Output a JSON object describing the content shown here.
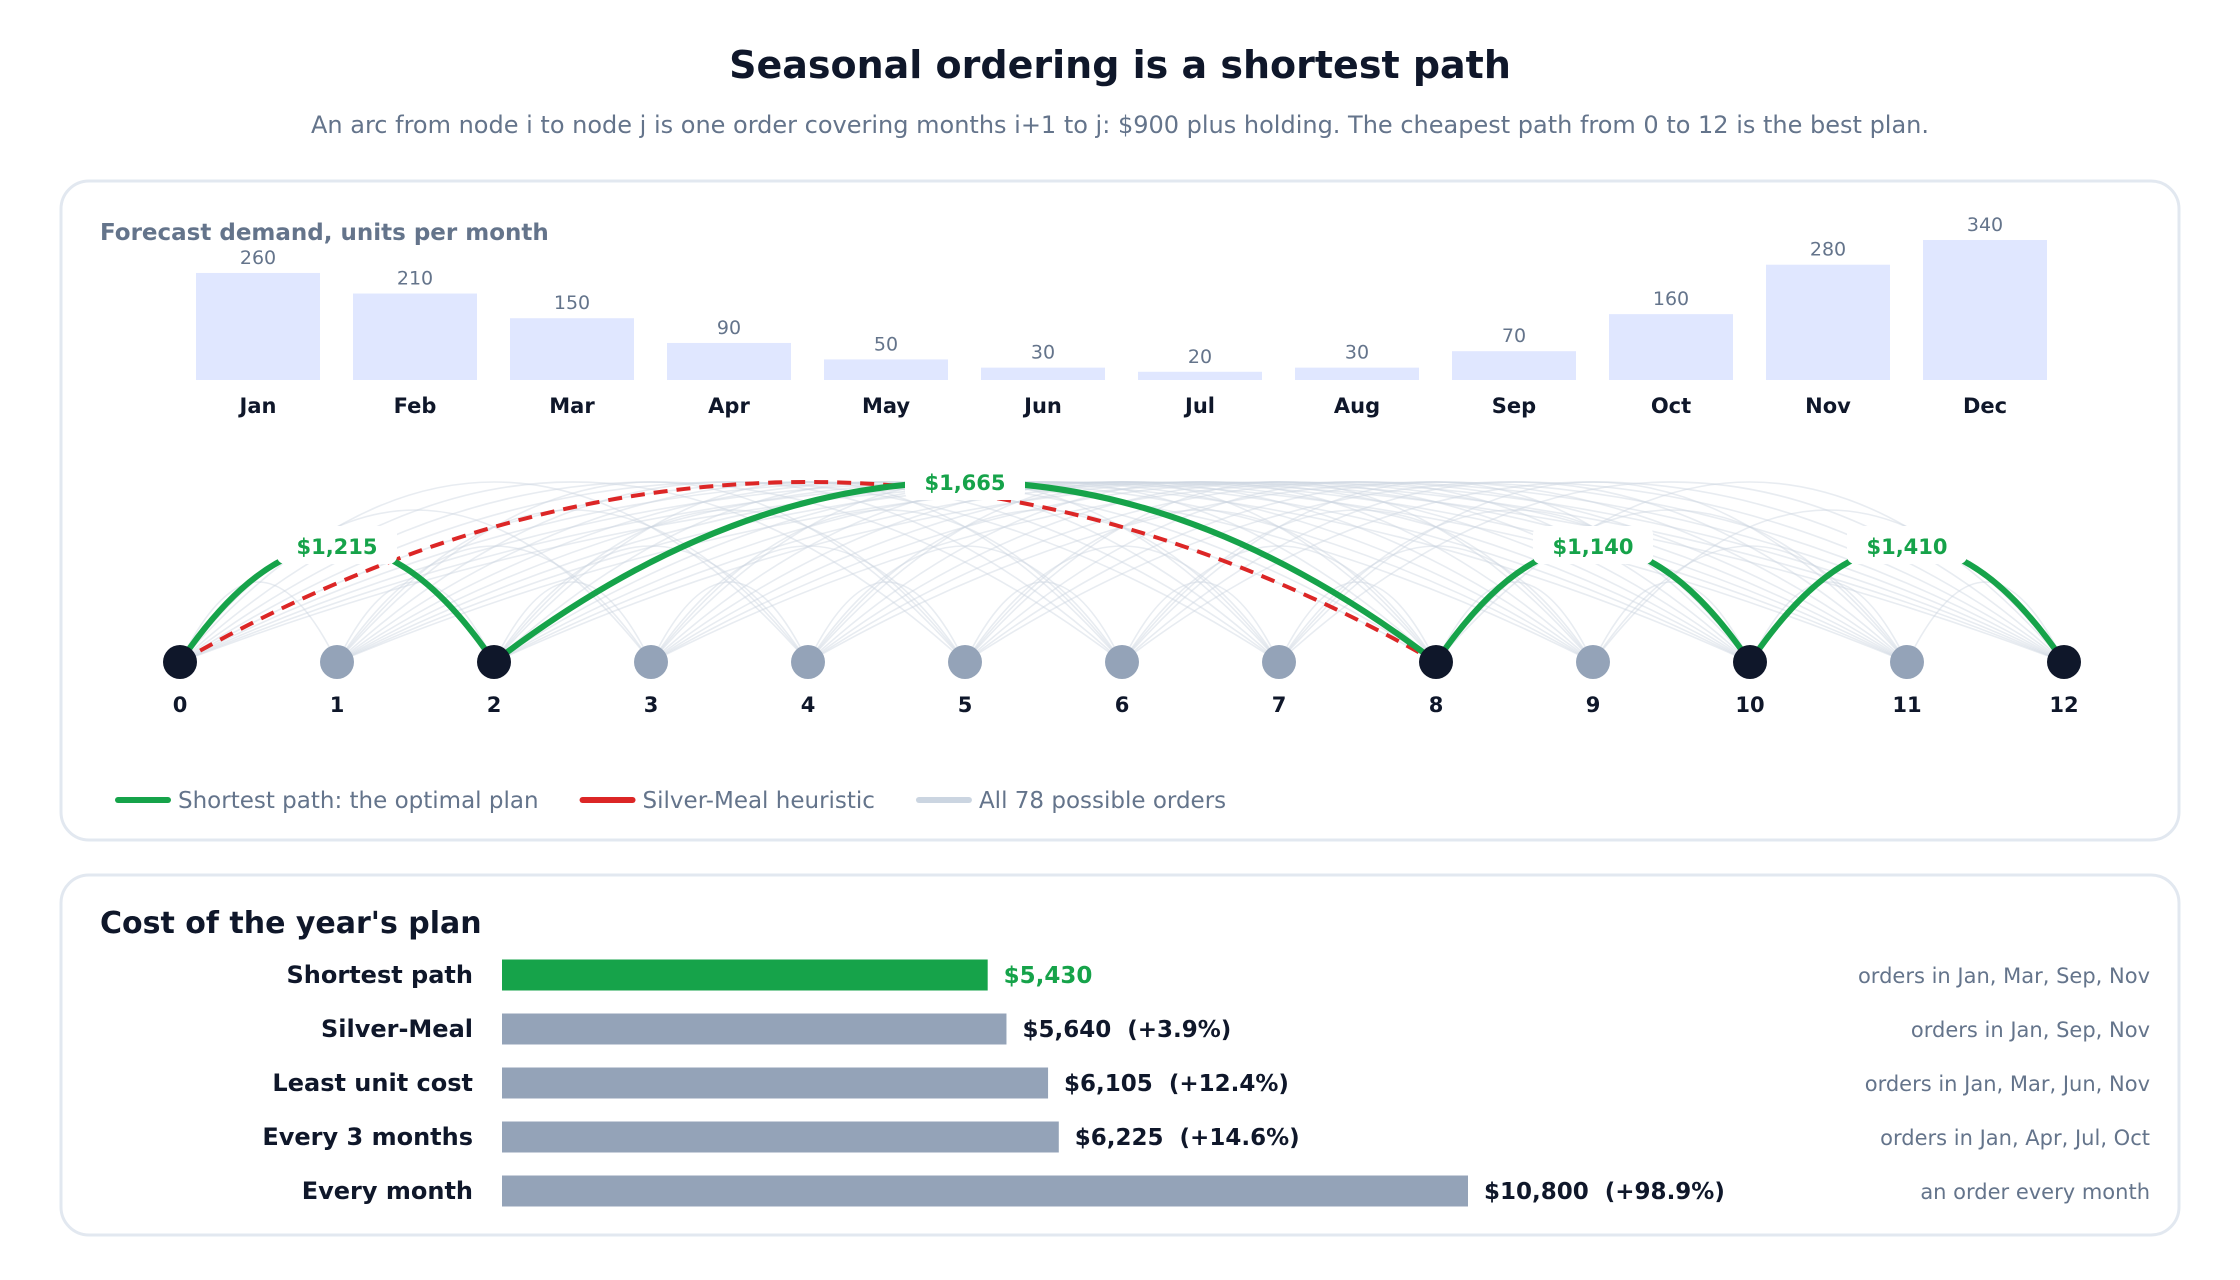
{
  "header": {
    "title": "Seasonal ordering is a shortest path",
    "subtitle": "An arc from node i to node j is one order covering months i+1 to j: $900 plus holding. The cheapest path from 0 to 12 is the best plan."
  },
  "colors": {
    "optimal": "#16a34a",
    "heuristic": "#dc2626",
    "arc": "#cbd5e1",
    "demand_bar": "#e0e7ff",
    "node_path": "#0f172a",
    "node_other": "#94a3b8",
    "cost_bar_other": "#94a3b8",
    "panel_border": "#e2e8f0",
    "muted_text": "#64748b"
  },
  "chart_data": [
    {
      "type": "bar",
      "title": "Forecast demand, units per month",
      "categories": [
        "Jan",
        "Feb",
        "Mar",
        "Apr",
        "May",
        "Jun",
        "Jul",
        "Aug",
        "Sep",
        "Oct",
        "Nov",
        "Dec"
      ],
      "values": [
        260,
        210,
        150,
        90,
        50,
        30,
        20,
        30,
        70,
        160,
        280,
        340
      ],
      "ylim": [
        0,
        340
      ]
    },
    {
      "type": "network",
      "nodes": [
        0,
        1,
        2,
        3,
        4,
        5,
        6,
        7,
        8,
        9,
        10,
        11,
        12
      ],
      "path_nodes": [
        0,
        2,
        8,
        10,
        12
      ],
      "optimal_arcs": [
        {
          "from": 0,
          "to": 2,
          "cost": 1215,
          "label": "$1,215"
        },
        {
          "from": 2,
          "to": 8,
          "cost": 1665,
          "label": "$1,665"
        },
        {
          "from": 8,
          "to": 10,
          "cost": 1140,
          "label": "$1,140"
        },
        {
          "from": 10,
          "to": 12,
          "cost": 1410,
          "label": "$1,410"
        }
      ],
      "heuristic_arcs": [
        {
          "from": 0,
          "to": 8
        },
        {
          "from": 8,
          "to": 10
        },
        {
          "from": 10,
          "to": 12
        }
      ],
      "legend": [
        {
          "key": "optimal",
          "label": "Shortest path: the optimal plan"
        },
        {
          "key": "heuristic",
          "label": "Silver-Meal heuristic"
        },
        {
          "key": "arc",
          "label": "All 78 possible orders"
        }
      ]
    },
    {
      "type": "bar",
      "title": "Cost of the year's plan",
      "orientation": "horizontal",
      "categories": [
        "Shortest path",
        "Silver-Meal",
        "Least unit cost",
        "Every 3 months",
        "Every month"
      ],
      "values": [
        5430,
        5640,
        6105,
        6225,
        10800
      ],
      "value_labels": [
        "$5,430",
        "$5,640  (+3.9%)",
        "$6,105  (+12.4%)",
        "$6,225  (+14.6%)",
        "$10,800  (+98.9%)"
      ],
      "notes": [
        "orders in Jan, Mar, Sep, Nov",
        "orders in Jan, Sep, Nov",
        "orders in Jan, Mar, Jun, Nov",
        "orders in Jan, Apr, Jul, Oct",
        "an order every month"
      ],
      "xlim": [
        0,
        10800
      ]
    }
  ]
}
